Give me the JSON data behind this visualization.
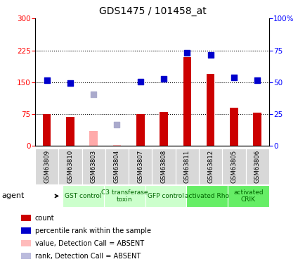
{
  "title": "GDS1475 / 101458_at",
  "samples": [
    "GSM63809",
    "GSM63810",
    "GSM63803",
    "GSM63804",
    "GSM63807",
    "GSM63808",
    "GSM63811",
    "GSM63812",
    "GSM63805",
    "GSM63806"
  ],
  "bar_values": [
    75,
    68,
    35,
    2,
    75,
    80,
    210,
    170,
    90,
    78
  ],
  "bar_colors": [
    "#cc0000",
    "#cc0000",
    "#ffaaaa",
    "#ffaaaa",
    "#cc0000",
    "#cc0000",
    "#cc0000",
    "#cc0000",
    "#cc0000",
    "#cc0000"
  ],
  "dot_values_left": [
    155,
    148,
    122,
    50,
    151,
    158,
    220,
    215,
    162,
    155
  ],
  "dot_colors": [
    "#0000cc",
    "#0000cc",
    "#aaaacc",
    "#aaaacc",
    "#0000cc",
    "#0000cc",
    "#0000cc",
    "#0000cc",
    "#0000cc",
    "#0000cc"
  ],
  "groups": [
    {
      "label": "GST control",
      "start": 0,
      "end": 2,
      "color": "#ccffcc"
    },
    {
      "label": "C3 transferase\ntoxin",
      "start": 2,
      "end": 4,
      "color": "#ccffcc"
    },
    {
      "label": "GFP control",
      "start": 4,
      "end": 6,
      "color": "#ccffcc"
    },
    {
      "label": "activated Rho",
      "start": 6,
      "end": 8,
      "color": "#66ee66"
    },
    {
      "label": "activated\nCRIK",
      "start": 8,
      "end": 10,
      "color": "#66ee66"
    }
  ],
  "ylim_left": [
    0,
    300
  ],
  "ylim_right": [
    0,
    100
  ],
  "yticks_left": [
    0,
    75,
    150,
    225,
    300
  ],
  "yticks_right": [
    0,
    25,
    50,
    75,
    100
  ],
  "hlines": [
    75,
    150,
    225
  ],
  "bar_width": 0.35,
  "dot_size": 28,
  "legend_items": [
    {
      "color": "#cc0000",
      "label": "count"
    },
    {
      "color": "#0000cc",
      "label": "percentile rank within the sample"
    },
    {
      "color": "#ffbbbb",
      "label": "value, Detection Call = ABSENT"
    },
    {
      "color": "#bbbbdd",
      "label": "rank, Detection Call = ABSENT"
    }
  ]
}
